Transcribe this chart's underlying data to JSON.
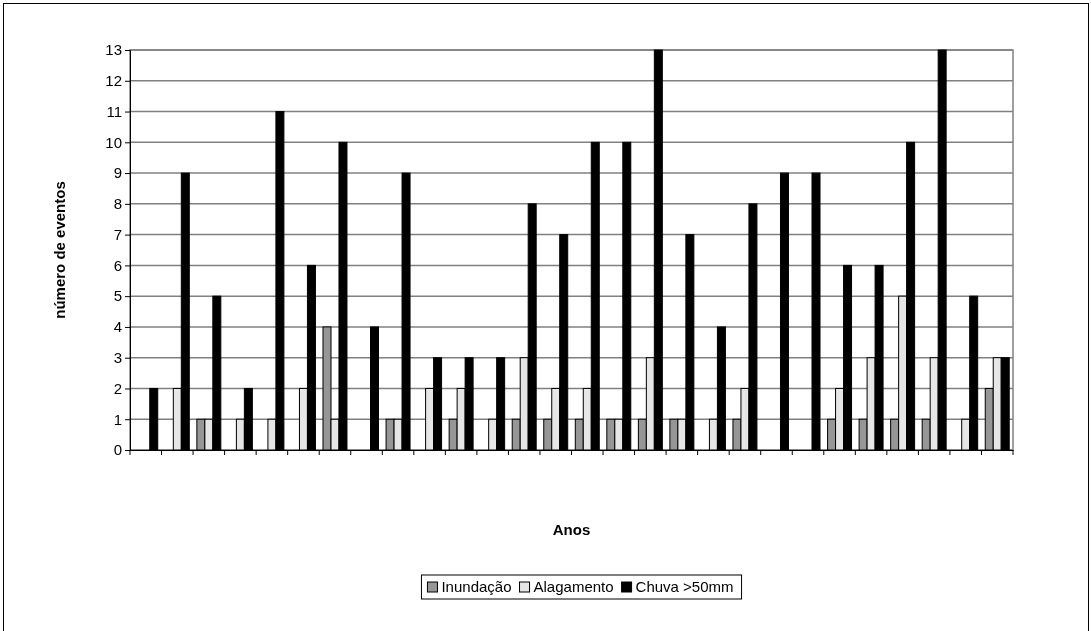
{
  "chart_data": {
    "type": "bar",
    "xlabel": "Anos",
    "ylabel": "número de eventos",
    "categories": [
      null,
      null,
      null,
      null,
      null,
      null,
      null,
      null,
      null,
      null,
      null,
      null,
      null,
      null,
      null,
      null,
      null,
      null,
      null,
      null,
      null,
      null,
      null,
      null,
      null,
      null,
      null,
      null
    ],
    "series": [
      {
        "name": "Inundação",
        "color": "#969696",
        "values": [
          0,
          0,
          1,
          0,
          0,
          0,
          4,
          0,
          1,
          0,
          1,
          0,
          1,
          1,
          1,
          1,
          1,
          1,
          0,
          1,
          0,
          0,
          1,
          1,
          1,
          1,
          0,
          2
        ]
      },
      {
        "name": "Alagamento",
        "color": "#e6e6e6",
        "values": [
          0,
          2,
          1,
          1,
          1,
          2,
          1,
          0,
          1,
          2,
          2,
          1,
          3,
          2,
          2,
          1,
          3,
          1,
          1,
          2,
          0,
          0,
          2,
          3,
          5,
          3,
          1,
          3
        ]
      },
      {
        "name": "Chuva >50mm",
        "color": "#000000",
        "values": [
          2,
          9,
          5,
          2,
          11,
          6,
          10,
          4,
          9,
          3,
          3,
          3,
          8,
          7,
          10,
          10,
          13,
          7,
          4,
          8,
          9,
          9,
          6,
          6,
          10,
          13,
          5,
          3
        ]
      }
    ],
    "ylim": [
      0,
      13
    ],
    "yticks": [
      0,
      1,
      2,
      3,
      4,
      5,
      6,
      7,
      8,
      9,
      10,
      11,
      12,
      13
    ],
    "grid": "y",
    "legend": "bottom"
  }
}
